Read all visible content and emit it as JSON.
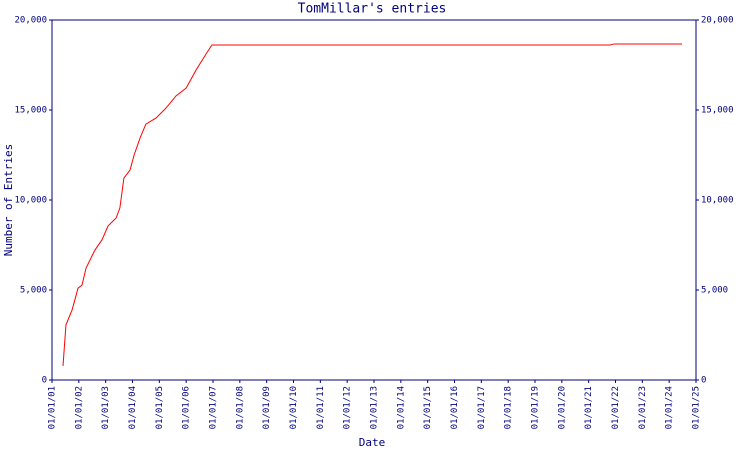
{
  "chart_data": {
    "type": "line",
    "title": "TomMillar's entries",
    "x_label": "Date",
    "y_label": "Number of Entries",
    "color": "#ff0000",
    "x": [
      2001.41,
      2001.52,
      2001.75,
      2001.97,
      2002.12,
      2002.27,
      2002.6,
      2002.86,
      2003.09,
      2003.39,
      2003.53,
      2003.68,
      2003.91,
      2004.06,
      2004.28,
      2004.5,
      2004.88,
      2005.25,
      2005.62,
      2006.0,
      2006.37,
      2006.74,
      2006.96,
      2021.8,
      2021.95,
      2024.48
    ],
    "values": [
      780,
      3060,
      3900,
      5100,
      5280,
      6220,
      7220,
      7780,
      8560,
      9000,
      9560,
      11220,
      11670,
      12500,
      13440,
      14220,
      14560,
      15110,
      15780,
      16220,
      17220,
      18110,
      18610,
      18610,
      18670,
      18670
    ],
    "xlim": [
      2001,
      2025
    ],
    "xticks": [
      {
        "value": 2001,
        "label": "01/01/01"
      },
      {
        "value": 2002,
        "label": "01/01/02"
      },
      {
        "value": 2003,
        "label": "01/01/03"
      },
      {
        "value": 2004,
        "label": "01/01/04"
      },
      {
        "value": 2005,
        "label": "01/01/05"
      },
      {
        "value": 2006,
        "label": "01/01/06"
      },
      {
        "value": 2007,
        "label": "01/01/07"
      },
      {
        "value": 2008,
        "label": "01/01/08"
      },
      {
        "value": 2009,
        "label": "01/01/09"
      },
      {
        "value": 2010,
        "label": "01/01/10"
      },
      {
        "value": 2011,
        "label": "01/01/11"
      },
      {
        "value": 2012,
        "label": "01/01/12"
      },
      {
        "value": 2013,
        "label": "01/01/13"
      },
      {
        "value": 2014,
        "label": "01/01/14"
      },
      {
        "value": 2015,
        "label": "01/01/15"
      },
      {
        "value": 2016,
        "label": "01/01/16"
      },
      {
        "value": 2017,
        "label": "01/01/17"
      },
      {
        "value": 2018,
        "label": "01/01/18"
      },
      {
        "value": 2019,
        "label": "01/01/19"
      },
      {
        "value": 2020,
        "label": "01/01/20"
      },
      {
        "value": 2021,
        "label": "01/01/21"
      },
      {
        "value": 2022,
        "label": "01/01/22"
      },
      {
        "value": 2023,
        "label": "01/01/23"
      },
      {
        "value": 2024,
        "label": "01/01/24"
      },
      {
        "value": 2025,
        "label": "01/01/25"
      }
    ],
    "ylim": [
      0,
      20000
    ],
    "yticks": [
      0,
      {
        "value": 5000,
        "label": "5,000"
      },
      {
        "value": 10000,
        "label": "10,000"
      },
      {
        "value": 15000,
        "label": "15,000"
      },
      {
        "value": 20000,
        "label": "20,000"
      }
    ]
  }
}
